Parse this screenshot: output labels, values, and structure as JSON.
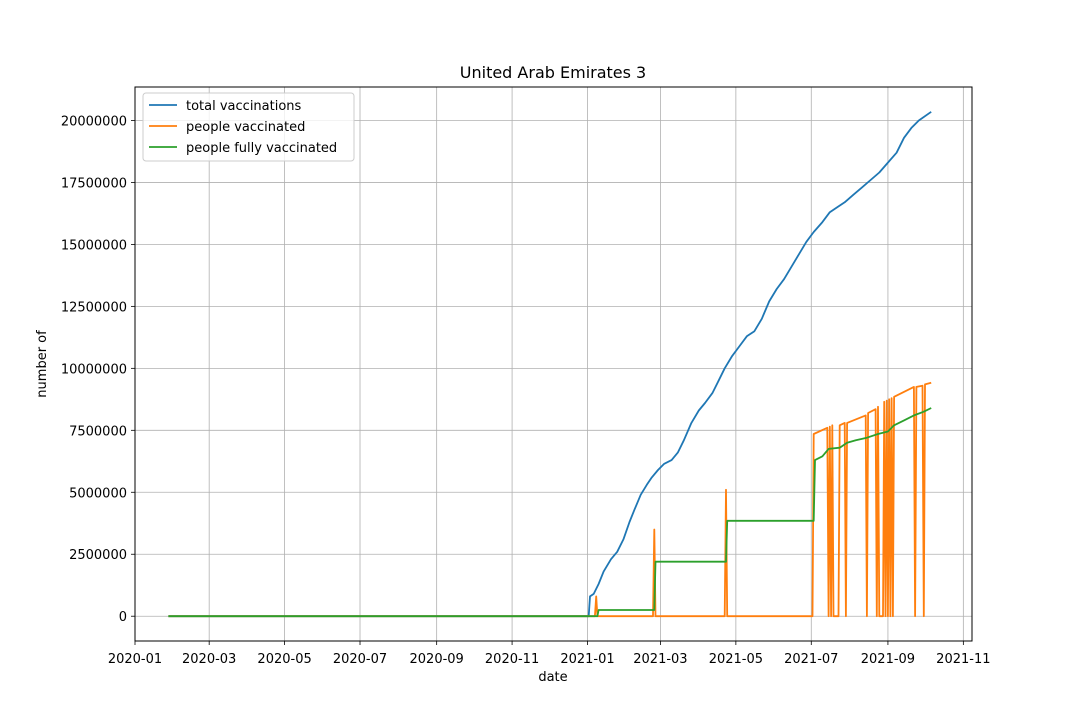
{
  "chart_data": {
    "type": "line",
    "title": "United Arab Emirates 3",
    "xlabel": "date",
    "ylabel": "number of",
    "grid": true,
    "legend_placement": "top-left",
    "xlim": [
      "2020-01-01",
      "2021-11-08"
    ],
    "ylim": [
      -1000000,
      21350000
    ],
    "x_ticks": [
      "2020-01-01",
      "2020-03-01",
      "2020-05-01",
      "2020-07-01",
      "2020-09-01",
      "2020-11-01",
      "2021-01-01",
      "2021-03-01",
      "2021-05-01",
      "2021-07-01",
      "2021-09-01",
      "2021-11-01"
    ],
    "x_tick_labels": [
      "2020-01",
      "2020-03",
      "2020-05",
      "2020-07",
      "2020-09",
      "2020-11",
      "2021-01",
      "2021-03",
      "2021-05",
      "2021-07",
      "2021-09",
      "2021-11"
    ],
    "y_ticks": [
      0,
      2500000,
      5000000,
      7500000,
      10000000,
      12500000,
      15000000,
      17500000,
      20000000
    ],
    "y_tick_labels": [
      "0",
      "2500000",
      "5000000",
      "7500000",
      "10000000",
      "12500000",
      "15000000",
      "17500000",
      "20000000"
    ],
    "series": [
      {
        "name": "total vaccinations",
        "color": "#1f77b4",
        "points": [
          [
            "2020-01-28",
            0
          ],
          [
            "2020-06-01",
            0
          ],
          [
            "2020-10-01",
            0
          ],
          [
            "2021-01-02",
            0
          ],
          [
            "2021-01-03",
            800000
          ],
          [
            "2021-01-06",
            900000
          ],
          [
            "2021-01-10",
            1300000
          ],
          [
            "2021-01-14",
            1800000
          ],
          [
            "2021-01-20",
            2300000
          ],
          [
            "2021-01-25",
            2600000
          ],
          [
            "2021-01-30",
            3100000
          ],
          [
            "2021-02-04",
            3800000
          ],
          [
            "2021-02-08",
            4300000
          ],
          [
            "2021-02-13",
            4900000
          ],
          [
            "2021-02-18",
            5300000
          ],
          [
            "2021-02-22",
            5600000
          ],
          [
            "2021-02-27",
            5900000
          ],
          [
            "2021-03-04",
            6150000
          ],
          [
            "2021-03-10",
            6300000
          ],
          [
            "2021-03-15",
            6600000
          ],
          [
            "2021-03-20",
            7100000
          ],
          [
            "2021-03-26",
            7800000
          ],
          [
            "2021-04-01",
            8300000
          ],
          [
            "2021-04-06",
            8600000
          ],
          [
            "2021-04-12",
            9000000
          ],
          [
            "2021-04-17",
            9500000
          ],
          [
            "2021-04-22",
            10000000
          ],
          [
            "2021-04-28",
            10500000
          ],
          [
            "2021-05-04",
            10900000
          ],
          [
            "2021-05-10",
            11300000
          ],
          [
            "2021-05-16",
            11500000
          ],
          [
            "2021-05-22",
            12000000
          ],
          [
            "2021-05-28",
            12700000
          ],
          [
            "2021-06-03",
            13200000
          ],
          [
            "2021-06-09",
            13600000
          ],
          [
            "2021-06-15",
            14100000
          ],
          [
            "2021-06-21",
            14600000
          ],
          [
            "2021-06-27",
            15100000
          ],
          [
            "2021-07-03",
            15500000
          ],
          [
            "2021-07-10",
            15900000
          ],
          [
            "2021-07-16",
            16300000
          ],
          [
            "2021-07-22",
            16500000
          ],
          [
            "2021-07-28",
            16700000
          ],
          [
            "2021-08-04",
            17000000
          ],
          [
            "2021-08-11",
            17300000
          ],
          [
            "2021-08-18",
            17600000
          ],
          [
            "2021-08-25",
            17900000
          ],
          [
            "2021-09-01",
            18300000
          ],
          [
            "2021-09-08",
            18700000
          ],
          [
            "2021-09-14",
            19300000
          ],
          [
            "2021-09-20",
            19700000
          ],
          [
            "2021-09-26",
            20000000
          ],
          [
            "2021-10-06",
            20350000
          ]
        ]
      },
      {
        "name": "people vaccinated",
        "color": "#ff7f0e",
        "points": [
          [
            "2020-01-28",
            0
          ],
          [
            "2021-01-07",
            0
          ],
          [
            "2021-01-08",
            800000
          ],
          [
            "2021-01-09",
            0
          ],
          [
            "2021-02-23",
            0
          ],
          [
            "2021-02-24",
            3500000
          ],
          [
            "2021-02-25",
            0
          ],
          [
            "2021-04-22",
            0
          ],
          [
            "2021-04-23",
            5100000
          ],
          [
            "2021-04-24",
            0
          ],
          [
            "2021-07-02",
            0
          ],
          [
            "2021-07-03",
            7350000
          ],
          [
            "2021-07-14",
            7600000
          ],
          [
            "2021-07-15",
            0
          ],
          [
            "2021-07-16",
            7650000
          ],
          [
            "2021-07-17",
            0
          ],
          [
            "2021-07-18",
            7700000
          ],
          [
            "2021-07-19",
            0
          ],
          [
            "2021-07-23",
            0
          ],
          [
            "2021-07-24",
            7700000
          ],
          [
            "2021-07-28",
            7800000
          ],
          [
            "2021-07-29",
            0
          ],
          [
            "2021-07-30",
            7800000
          ],
          [
            "2021-08-14",
            8100000
          ],
          [
            "2021-08-15",
            0
          ],
          [
            "2021-08-16",
            8200000
          ],
          [
            "2021-08-22",
            8350000
          ],
          [
            "2021-08-23",
            0
          ],
          [
            "2021-08-24",
            8450000
          ],
          [
            "2021-08-25",
            0
          ],
          [
            "2021-08-28",
            0
          ],
          [
            "2021-08-29",
            8650000
          ],
          [
            "2021-08-30",
            0
          ],
          [
            "2021-08-31",
            8700000
          ],
          [
            "2021-09-01",
            0
          ],
          [
            "2021-09-02",
            8750000
          ],
          [
            "2021-09-03",
            0
          ],
          [
            "2021-09-04",
            8800000
          ],
          [
            "2021-09-05",
            0
          ],
          [
            "2021-09-06",
            8850000
          ],
          [
            "2021-09-22",
            9250000
          ],
          [
            "2021-09-23",
            0
          ],
          [
            "2021-09-24",
            9250000
          ],
          [
            "2021-09-29",
            9300000
          ],
          [
            "2021-09-30",
            0
          ],
          [
            "2021-10-01",
            9350000
          ],
          [
            "2021-10-06",
            9420000
          ]
        ]
      },
      {
        "name": "people fully vaccinated",
        "color": "#2ca02c",
        "points": [
          [
            "2020-01-28",
            0
          ],
          [
            "2021-01-09",
            0
          ],
          [
            "2021-01-10",
            250000
          ],
          [
            "2021-02-24",
            250000
          ],
          [
            "2021-02-25",
            2200000
          ],
          [
            "2021-04-23",
            2200000
          ],
          [
            "2021-04-24",
            3850000
          ],
          [
            "2021-07-03",
            3850000
          ],
          [
            "2021-07-04",
            6300000
          ],
          [
            "2021-07-10",
            6450000
          ],
          [
            "2021-07-15",
            6750000
          ],
          [
            "2021-07-24",
            6800000
          ],
          [
            "2021-07-30",
            7000000
          ],
          [
            "2021-08-06",
            7100000
          ],
          [
            "2021-08-15",
            7200000
          ],
          [
            "2021-08-24",
            7350000
          ],
          [
            "2021-09-01",
            7450000
          ],
          [
            "2021-09-06",
            7700000
          ],
          [
            "2021-09-14",
            7900000
          ],
          [
            "2021-09-22",
            8100000
          ],
          [
            "2021-09-30",
            8250000
          ],
          [
            "2021-10-06",
            8400000
          ]
        ]
      }
    ]
  }
}
